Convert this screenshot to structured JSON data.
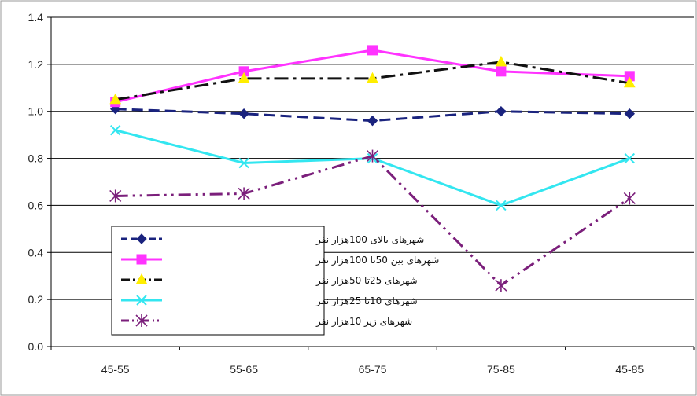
{
  "chart_data": {
    "type": "line",
    "title": "",
    "xlabel": "",
    "ylabel": "",
    "categories": [
      "45-55",
      "55-65",
      "65-75",
      "75-85",
      "45-85"
    ],
    "ylim": [
      0.0,
      1.4
    ],
    "yticks": [
      "0.0",
      "0.2",
      "0.4",
      "0.6",
      "0.8",
      "1.0",
      "1.2",
      "1.4"
    ],
    "grid": true,
    "legend_position": "bottom-left",
    "series": [
      {
        "name": "شهرهای بالای 100هزار نفر",
        "values": [
          1.01,
          0.99,
          0.96,
          1.0,
          0.99
        ],
        "color": "#1a237e",
        "marker": "diamond",
        "dash": "dashed"
      },
      {
        "name": "شهرهای بین 50تا 100هزار نفر",
        "values": [
          1.04,
          1.17,
          1.26,
          1.17,
          1.15
        ],
        "color": "#ff33ff",
        "marker": "square",
        "dash": "solid"
      },
      {
        "name": "شهرهای 25تا 50هزار نفر",
        "values": [
          1.05,
          1.14,
          1.14,
          1.21,
          1.12
        ],
        "color": "#111111",
        "marker": "triangle",
        "dash": "dashdot"
      },
      {
        "name": "شهرهای 10تا 25هزار نفر",
        "values": [
          0.92,
          0.78,
          0.8,
          0.6,
          0.8
        ],
        "color": "#33e6f0",
        "marker": "x",
        "dash": "solid"
      },
      {
        "name": "شهرهای زیر 10هزار نفر",
        "values": [
          0.64,
          0.65,
          0.81,
          0.26,
          0.63
        ],
        "color": "#7b1f7b",
        "marker": "star",
        "dash": "dashdotdot"
      }
    ]
  }
}
